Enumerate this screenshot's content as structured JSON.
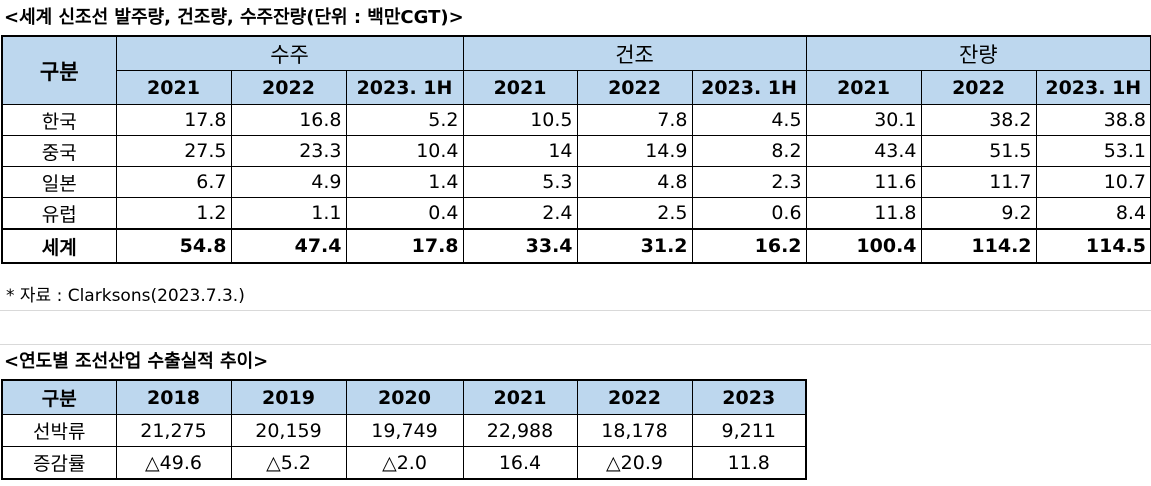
{
  "table1": {
    "title": "<세계 신조선 발주량, 건조량, 수주잔량(단위 : 백만CGT)>",
    "row_header": "구분",
    "groups": [
      "수주",
      "건조",
      "잔량"
    ],
    "years": [
      "2021",
      "2022",
      "2023. 1H"
    ],
    "rows": [
      {
        "label": "한국",
        "values": [
          "17.8",
          "16.8",
          "5.2",
          "10.5",
          "7.8",
          "4.5",
          "30.1",
          "38.2",
          "38.8"
        ]
      },
      {
        "label": "중국",
        "values": [
          "27.5",
          "23.3",
          "10.4",
          "14",
          "14.9",
          "8.2",
          "43.4",
          "51.5",
          "53.1"
        ]
      },
      {
        "label": "일본",
        "values": [
          "6.7",
          "4.9",
          "1.4",
          "5.3",
          "4.8",
          "2.3",
          "11.6",
          "11.7",
          "10.7"
        ]
      },
      {
        "label": "유럽",
        "values": [
          "1.2",
          "1.1",
          "0.4",
          "2.4",
          "2.5",
          "0.6",
          "11.8",
          "9.2",
          "8.4"
        ]
      }
    ],
    "total": {
      "label": "세계",
      "values": [
        "54.8",
        "47.4",
        "17.8",
        "33.4",
        "31.2",
        "16.2",
        "100.4",
        "114.2",
        "114.5"
      ]
    },
    "source_note": "* 자료 : Clarksons(2023.7.3.)"
  },
  "table2": {
    "title": "<연도별 조선산업 수출실적 추이>",
    "row_header": "구분",
    "years": [
      "2018",
      "2019",
      "2020",
      "2021",
      "2022",
      "2023"
    ],
    "rows": [
      {
        "label": "선박류",
        "values": [
          "21,275",
          "20,159",
          "19,749",
          "22,988",
          "18,178",
          "9,211"
        ]
      },
      {
        "label": "증감률",
        "values": [
          "△49.6",
          "△5.2",
          "△2.0",
          "16.4",
          "△20.9",
          "11.8"
        ]
      }
    ]
  }
}
